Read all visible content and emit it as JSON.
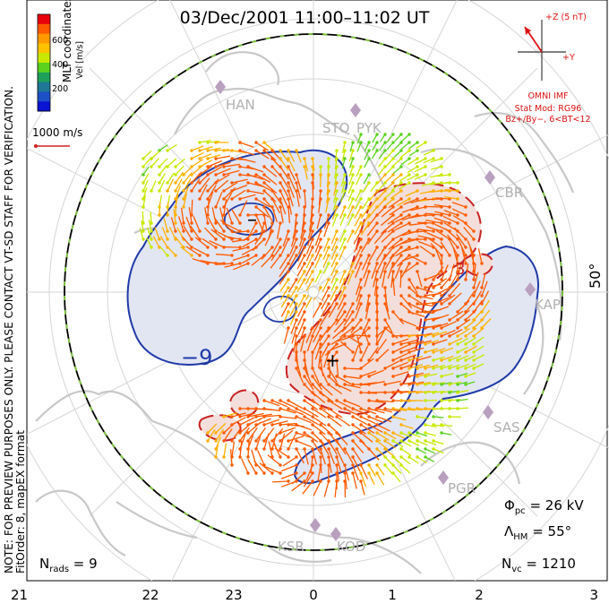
{
  "title": "03/Dec/2001  11:00–11:02  UT",
  "side_note": "NOTE: FOR PREVIEW PURPOSES ONLY. PLEASE CONTACT VT-SD STAFF FOR VERIFICATION.",
  "fit_info": "FitOrder: 8,  mapEX format",
  "coords_label": "MLT coordinates",
  "velocity_scale": {
    "label": "Vel [m/s]",
    "ticks": [
      "600",
      "400",
      "200"
    ],
    "colors": [
      "#e8000b",
      "#ff5a00",
      "#ff9a00",
      "#ffc200",
      "#c8e800",
      "#5ad21e",
      "#1ea05a",
      "#1e7896",
      "#1e50c8",
      "#0a14d2"
    ]
  },
  "ref_vector": {
    "label": "1000 m/s",
    "color": "#d22020"
  },
  "imf": {
    "plus_z_label": "+Z (5 nT)",
    "plus_y_label": "+Y",
    "source": "OMNI IMF",
    "model_label": "Stat Mod: RG96",
    "model_condition": "Bz+/By−,  6<BT<12",
    "color": "#dd1111"
  },
  "latitude_label": "50°",
  "contour_labels": {
    "negative": "−9",
    "positive": "3"
  },
  "stations": [
    "HAN",
    "STO",
    "PYK",
    "CBR",
    "KAP",
    "SAS",
    "PGR",
    "KSR",
    "KOD"
  ],
  "stats": {
    "phi_pc_symbol": "Φ",
    "phi_pc_sub": "pc",
    "phi_pc_value": " = 26 kV",
    "lambda_hm_symbol": "Λ",
    "lambda_hm_sub": "HM",
    "lambda_hm_value": " = 55°",
    "n_rads_symbol": "N",
    "n_rads_sub": "rads",
    "n_rads_value": " = 9",
    "n_vc_symbol": "N",
    "n_vc_sub": "vc",
    "n_vc_value": " = 1210"
  },
  "mlt_hours": [
    "21",
    "22",
    "23",
    "0",
    "1",
    "2",
    "3"
  ],
  "colors": {
    "negative_fill": "#e2e6f3",
    "negative_line": "#1f3aa8",
    "positive_fill": "#f3dedb",
    "positive_line": "#c92222",
    "coast": "#c8c8c8",
    "grid": "#d6d6d6",
    "station_marker": "#b9a0bf"
  }
}
